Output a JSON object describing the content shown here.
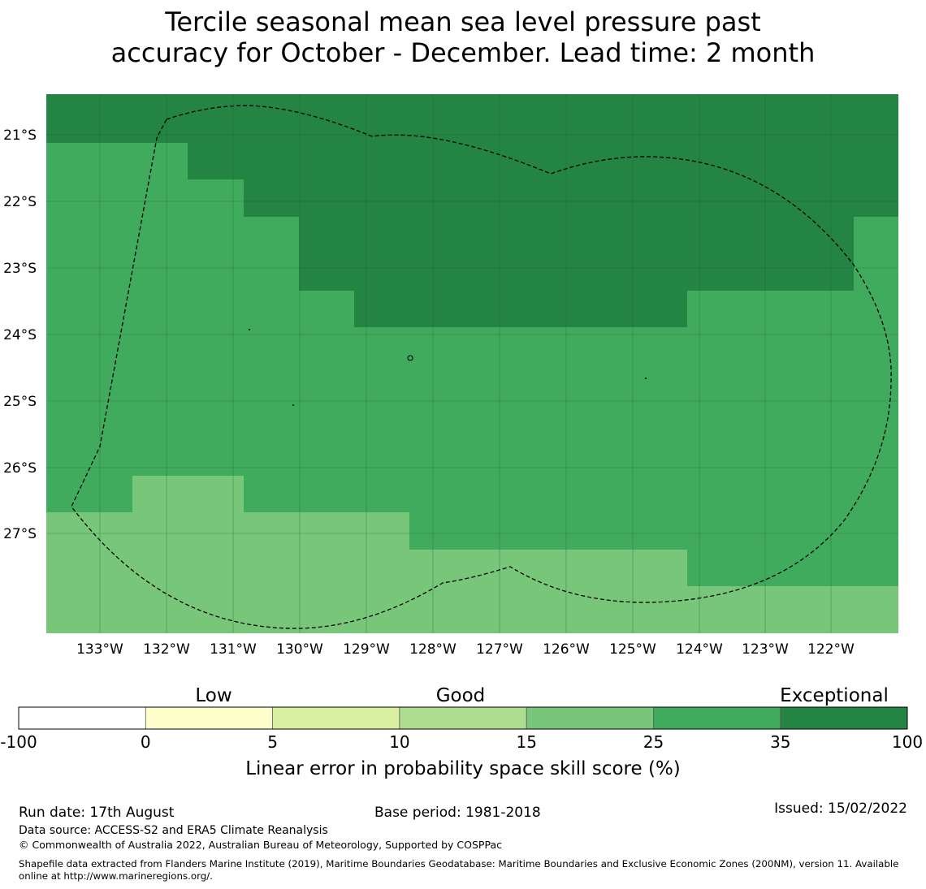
{
  "title_line1": "Tercile seasonal mean sea level pressure past",
  "title_line2": "accuracy for October - December. Lead time: 2 month",
  "map": {
    "lat_labels": [
      "21°S",
      "22°S",
      "23°S",
      "24°S",
      "25°S",
      "26°S",
      "27°S"
    ],
    "lon_labels": [
      "133°W",
      "132°W",
      "131°W",
      "130°W",
      "129°W",
      "128°W",
      "127°W",
      "126°W",
      "125°W",
      "124°W",
      "123°W",
      "122°W"
    ],
    "bin_colors": {
      "ge35": "#238443",
      "25to35": "#41ab5d",
      "15to25": "#78c679"
    }
  },
  "colorbar": {
    "category_labels": [
      "Low",
      "Good",
      "Exceptional"
    ],
    "ticks": [
      "-100",
      "0",
      "5",
      "10",
      "15",
      "25",
      "35",
      "100"
    ],
    "colors": [
      "#ffffff",
      "#ffffcc",
      "#d9f0a3",
      "#addd8e",
      "#78c679",
      "#41ab5d",
      "#238443"
    ],
    "axis_label": "Linear error in probability space skill score (%)"
  },
  "footer": {
    "run_date": "Run date: 17th August",
    "base_period": "Base period: 1981-2018",
    "issued": "Issued: 15/02/2022",
    "data_source": "Data source: ACCESS-S2 and ERA5 Climate Reanalysis",
    "copyright": "© Commonwealth of Australia 2022, Australian Bureau of Meteorology, Supported by COSPPac",
    "shapefile_line1": "Shapefile data extracted from Flanders Marine Institute (2019), Maritime Boundaries Geodatabase: Maritime Boundaries and Exclusive Economic Zones (200NM), version 11. Available",
    "shapefile_line2": "online at http://www.marineregions.org/."
  }
}
